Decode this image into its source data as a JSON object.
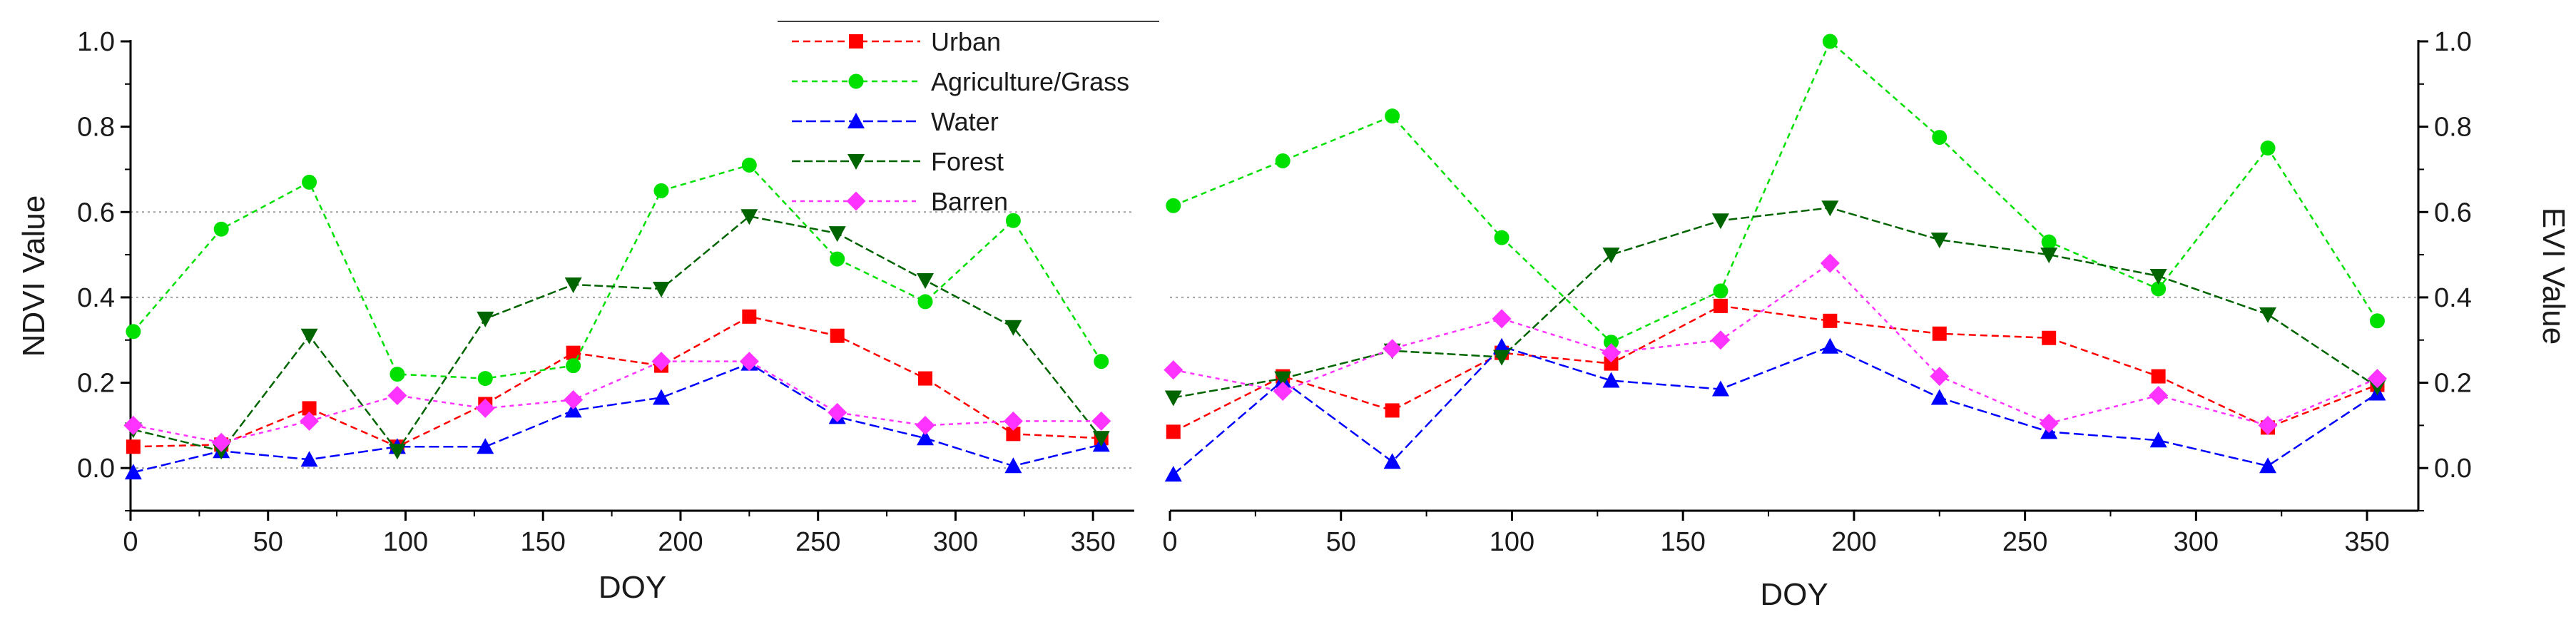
{
  "chart_data": [
    {
      "type": "line",
      "xlabel": "DOY",
      "ylabel": "NDVI Value",
      "xlim": [
        0,
        365
      ],
      "ylim": [
        -0.1,
        1.0
      ],
      "xticks": [
        0,
        50,
        100,
        150,
        200,
        250,
        300,
        350
      ],
      "yticks": [
        0.0,
        0.2,
        0.4,
        0.6,
        0.8,
        1.0
      ],
      "ytick_labels": [
        "0.0",
        "0.2",
        "0.4",
        "0.6",
        "0.8",
        "1.0"
      ],
      "grid_lines": [
        0.0,
        0.4,
        0.6
      ],
      "x": [
        1,
        33,
        65,
        97,
        129,
        161,
        193,
        225,
        257,
        289,
        321,
        353
      ],
      "series": [
        {
          "name": "Urban",
          "color": "#ff0000",
          "marker": "square",
          "values": [
            0.05,
            0.055,
            0.14,
            0.05,
            0.15,
            0.27,
            0.24,
            0.355,
            0.31,
            0.21,
            0.08,
            0.07
          ]
        },
        {
          "name": "Agriculture/Grass",
          "color": "#00e000",
          "marker": "circle",
          "values": [
            0.32,
            0.56,
            0.67,
            0.22,
            0.21,
            0.24,
            0.65,
            0.71,
            0.49,
            0.39,
            0.58,
            0.25
          ]
        },
        {
          "name": "Water",
          "color": "#0000ff",
          "marker": "triangle-up",
          "values": [
            -0.01,
            0.04,
            0.02,
            0.05,
            0.05,
            0.135,
            0.165,
            0.245,
            0.12,
            0.07,
            0.005,
            0.055
          ]
        },
        {
          "name": "Forest",
          "color": "#006400",
          "marker": "triangle-down",
          "values": [
            0.09,
            0.04,
            0.31,
            0.04,
            0.35,
            0.43,
            0.42,
            0.59,
            0.55,
            0.44,
            0.33,
            0.07
          ]
        },
        {
          "name": "Barren",
          "color": "#ff33ff",
          "marker": "diamond",
          "values": [
            0.1,
            0.06,
            0.11,
            0.17,
            0.14,
            0.16,
            0.25,
            0.25,
            0.13,
            0.1,
            0.11,
            0.11
          ]
        }
      ]
    },
    {
      "type": "line",
      "xlabel": "DOY",
      "ylabel": "EVI Value",
      "ylabel_side": "right",
      "xlim": [
        0,
        365
      ],
      "ylim": [
        -0.1,
        1.0
      ],
      "xticks": [
        0,
        50,
        100,
        150,
        200,
        250,
        300,
        350
      ],
      "yticks": [
        0.0,
        0.2,
        0.4,
        0.6,
        0.8,
        1.0
      ],
      "ytick_labels": [
        "0.0",
        "0.2",
        "0.4",
        "0.6",
        "0.8",
        "1.0"
      ],
      "grid_lines": [
        0.4
      ],
      "x": [
        1,
        33,
        65,
        97,
        129,
        161,
        193,
        225,
        257,
        289,
        321,
        353
      ],
      "series": [
        {
          "name": "Urban",
          "color": "#ff0000",
          "marker": "square",
          "values": [
            0.085,
            0.215,
            0.135,
            0.27,
            0.245,
            0.38,
            0.345,
            0.315,
            0.305,
            0.215,
            0.095,
            0.195
          ]
        },
        {
          "name": "Agriculture/Grass",
          "color": "#00e000",
          "marker": "circle",
          "values": [
            0.615,
            0.72,
            0.825,
            0.54,
            0.295,
            0.415,
            1.0,
            0.775,
            0.53,
            0.42,
            0.75,
            0.345
          ]
        },
        {
          "name": "Water",
          "color": "#0000ff",
          "marker": "triangle-up",
          "values": [
            -0.015,
            0.205,
            0.015,
            0.285,
            0.205,
            0.185,
            0.285,
            0.165,
            0.085,
            0.065,
            0.005,
            0.175
          ]
        },
        {
          "name": "Forest",
          "color": "#006400",
          "marker": "triangle-down",
          "values": [
            0.165,
            0.21,
            0.275,
            0.26,
            0.5,
            0.58,
            0.61,
            0.535,
            0.5,
            0.45,
            0.36,
            0.19
          ]
        },
        {
          "name": "Barren",
          "color": "#ff33ff",
          "marker": "diamond",
          "values": [
            0.23,
            0.18,
            0.28,
            0.35,
            0.27,
            0.3,
            0.48,
            0.215,
            0.105,
            0.17,
            0.1,
            0.21
          ]
        }
      ]
    }
  ],
  "legend": {
    "placement": "top-center",
    "entries": [
      "Urban",
      "Agriculture/Grass",
      "Water",
      "Forest",
      "Barren"
    ]
  }
}
